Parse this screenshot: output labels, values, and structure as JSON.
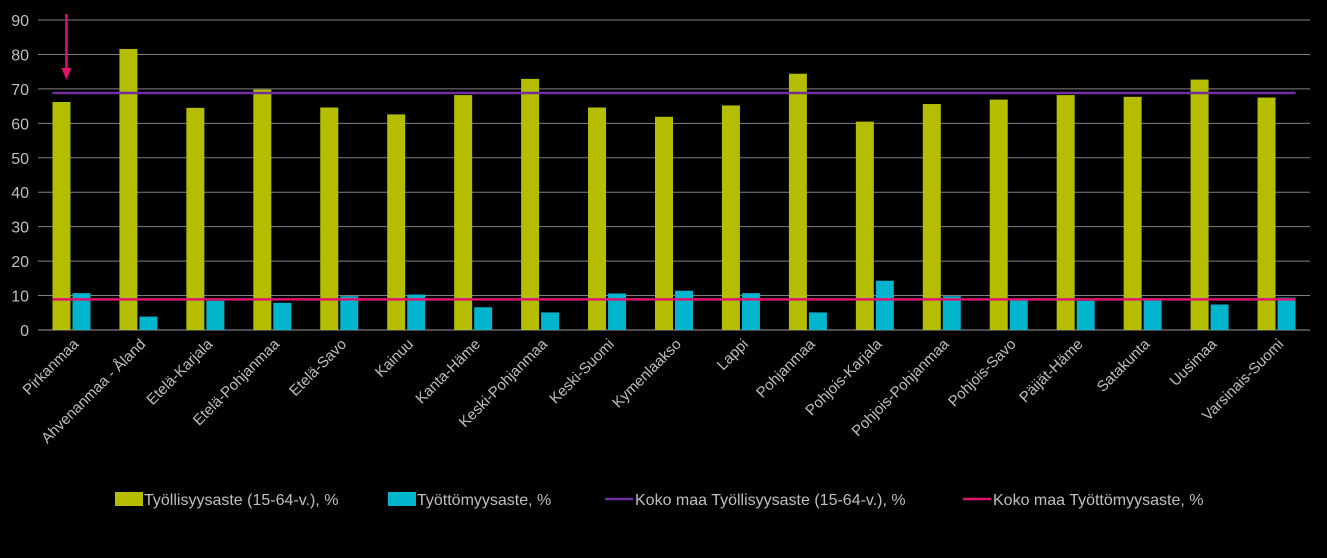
{
  "chart_data": {
    "type": "bar",
    "categories": [
      "Pirkanmaa",
      "Ahvenanmaa - Åland",
      "Etelä-Karjala",
      "Etelä-Pohjanmaa",
      "Etelä-Savo",
      "Kainuu",
      "Kanta-Häme",
      "Keski-Pohjanmaa",
      "Keski-Suomi",
      "Kymenlaakso",
      "Lappi",
      "Pohjanmaa",
      "Pohjois-Karjala",
      "Pohjois-Pohjanmaa",
      "Pohjois-Savo",
      "Päijät-Häme",
      "Satakunta",
      "Uusimaa",
      "Varsinais-Suomi"
    ],
    "series": [
      {
        "name": "Työllisyysaste (15-64-v.), %",
        "color": "#b5bd00",
        "values": [
          66.2,
          81.6,
          64.5,
          69.8,
          64.6,
          62.6,
          68.2,
          72.9,
          64.6,
          61.9,
          65.2,
          74.4,
          60.5,
          65.6,
          66.9,
          68.2,
          67.7,
          72.7,
          67.5
        ]
      },
      {
        "name": "Työttömyysaste, %",
        "color": "#00b5cc",
        "values": [
          10.7,
          3.9,
          8.5,
          7.9,
          9.8,
          10.3,
          6.6,
          5.1,
          10.6,
          11.4,
          10.7,
          5.1,
          14.3,
          9.8,
          9.0,
          8.5,
          9.2,
          7.4,
          9.4
        ]
      }
    ],
    "reference_lines": [
      {
        "name": "Koko maa Työllisyysaste (15-64-v.), %",
        "value": 68.8,
        "color": "#7030a0"
      },
      {
        "name": "Koko maa Työttömyysaste, %",
        "value": 8.9,
        "color": "#e0126e"
      }
    ],
    "annotation": {
      "type": "arrow",
      "category": "Pirkanmaa",
      "color": "#e0126e"
    },
    "ylim": [
      0,
      90
    ],
    "yticks": [
      0,
      10,
      20,
      30,
      40,
      50,
      60,
      70,
      80,
      90
    ],
    "grid": true,
    "legend_position": "bottom",
    "title": "",
    "xlabel": "",
    "ylabel": ""
  }
}
